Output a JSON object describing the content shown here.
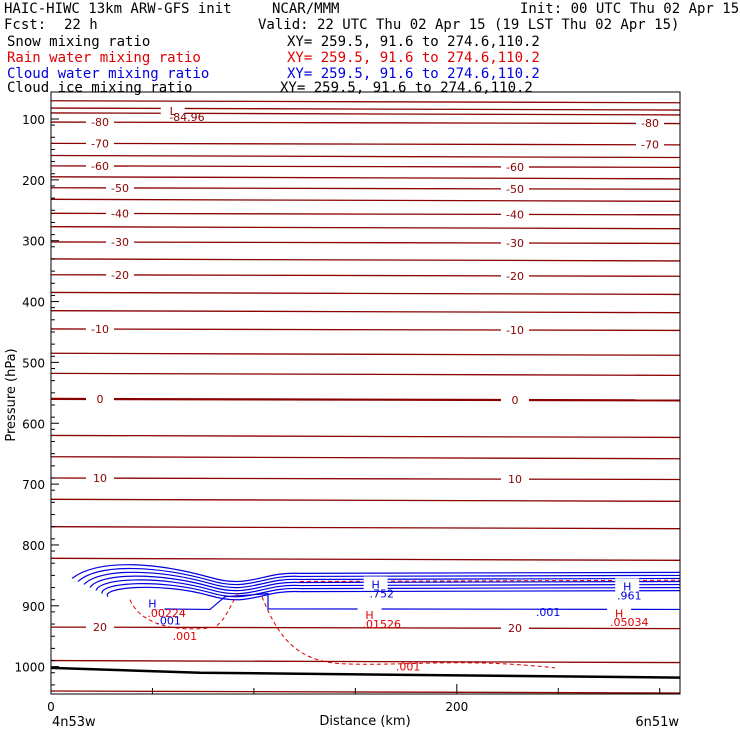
{
  "header": {
    "model": "HAIC-HIWC 13km ARW-GFS init",
    "org": "NCAR/MMM",
    "init": "Init: 00 UTC Thu 02 Apr 15",
    "fcst_label": "Fcst:",
    "fcst_value": "22 h",
    "valid": "Valid: 22 UTC Thu 02 Apr 15 (19 LST Thu 02 Apr 15)"
  },
  "fields": [
    {
      "name": "Snow mixing ratio",
      "xy": "XY= 259.5, 91.6 to 274.6,110.2",
      "color": "#000000"
    },
    {
      "name": "Rain water mixing ratio",
      "xy": "XY= 259.5, 91.6 to 274.6,110.2",
      "color": "#e00000"
    },
    {
      "name": "Cloud water mixing ratio",
      "xy": "XY= 259.5, 91.6 to 274.6,110.2",
      "color": "#0000e0"
    },
    {
      "name": "Cloud ice mixing ratio",
      "xy": "XY= 259.5, 91.6 to 274.6,110.2",
      "color": "#000000"
    }
  ],
  "chart_data": {
    "type": "line",
    "xlabel": "Distance (km)",
    "ylabel": "Pressure (hPa)",
    "xlim": [
      0,
      310
    ],
    "ylim": [
      1050,
      60
    ],
    "x_ticks": [
      0,
      200
    ],
    "y_ticks": [
      100,
      200,
      300,
      400,
      500,
      600,
      700,
      800,
      900,
      1000
    ],
    "endpoint_left": "4n53w",
    "endpoint_right": "6n51w",
    "temperature_isotherms": [
      {
        "label": "-80",
        "p": 105
      },
      {
        "label": "-70",
        "p": 140
      },
      {
        "label": "-60",
        "p": 177
      },
      {
        "label": "-50",
        "p": 213
      },
      {
        "label": "-40",
        "p": 255
      },
      {
        "label": "-30",
        "p": 302
      },
      {
        "label": "-20",
        "p": 356
      },
      {
        "label": "-10",
        "p": 445
      },
      {
        "label": "0",
        "p": 560
      },
      {
        "label": "10",
        "p": 690
      },
      {
        "label": "20",
        "p": 935
      }
    ],
    "extra_isotherms_p": [
      70,
      82,
      90,
      160,
      195,
      232,
      277,
      330,
      385,
      415,
      485,
      518,
      620,
      655,
      725,
      770,
      822,
      990,
      1040
    ],
    "annotations": [
      {
        "text": "L",
        "x": 60,
        "p": 87
      },
      {
        "text": "-84.96",
        "x": 67,
        "p": 97
      },
      {
        "text": "H",
        "x": 50,
        "p": 896
      },
      {
        "text": ".00224",
        "x": 57,
        "p": 912
      },
      {
        "text": ".001",
        "x": 58,
        "p": 924
      },
      {
        "text": ".001",
        "x": 66,
        "p": 950
      },
      {
        "text": "H",
        "x": 160,
        "p": 865
      },
      {
        "text": ".752",
        "x": 163,
        "p": 880
      },
      {
        "text": "H",
        "x": 157,
        "p": 915
      },
      {
        "text": ".01526",
        "x": 163,
        "p": 930
      },
      {
        "text": ".001",
        "x": 245,
        "p": 910
      },
      {
        "text": "H",
        "x": 284,
        "p": 868
      },
      {
        "text": ".961",
        "x": 285,
        "p": 883
      },
      {
        "text": "H",
        "x": 280,
        "p": 913
      },
      {
        "text": ".05034",
        "x": 285,
        "p": 927
      },
      {
        "text": ".001",
        "x": 176,
        "p": 1000
      }
    ],
    "isotherm_label_color": "#8b0000",
    "cloud_water_color": "#0000e0",
    "rain_water_color": "#e00000"
  }
}
